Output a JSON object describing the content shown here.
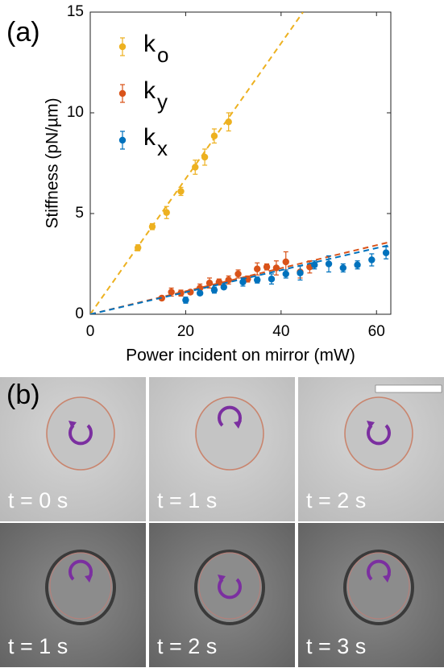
{
  "chart_data": {
    "type": "scatter",
    "xlabel": "Power incident on mirror (mW)",
    "ylabel": "Stiffness (pN/µm)",
    "xlim": [
      0,
      63
    ],
    "ylim": [
      0,
      15
    ],
    "xticks": [
      0,
      20,
      40,
      60
    ],
    "yticks": [
      0,
      5,
      10,
      15
    ],
    "legend": "upper left",
    "series": [
      {
        "name": "k",
        "subscript": "o",
        "color": "#EDB120",
        "x": [
          10,
          13,
          16,
          19,
          22,
          24,
          26,
          29
        ],
        "values": [
          3.3,
          4.35,
          5.05,
          6.1,
          7.3,
          7.8,
          8.85,
          9.55
        ],
        "errors": [
          0.15,
          0.15,
          0.3,
          0.2,
          0.35,
          0.4,
          0.35,
          0.45
        ],
        "fit": {
          "x": [
            0,
            44.6
          ],
          "y": [
            0,
            15
          ]
        }
      },
      {
        "name": "k",
        "subscript": "y",
        "color": "#D95319",
        "x": [
          15,
          17,
          19,
          21,
          23,
          25,
          27,
          29,
          31,
          33,
          35,
          37,
          39,
          41,
          44,
          46
        ],
        "values": [
          0.8,
          1.1,
          1.05,
          1.1,
          1.3,
          1.55,
          1.6,
          1.7,
          2.0,
          1.75,
          2.25,
          2.35,
          2.3,
          2.6,
          2.1,
          2.35
        ],
        "errors": [
          0.1,
          0.2,
          0.15,
          0.1,
          0.2,
          0.25,
          0.15,
          0.2,
          0.2,
          0.15,
          0.3,
          0.15,
          0.35,
          0.5,
          0.3,
          0.3
        ],
        "fit": {
          "x": [
            0,
            63
          ],
          "y": [
            0,
            3.6
          ]
        }
      },
      {
        "name": "k",
        "subscript": "x",
        "color": "#0072BD",
        "x": [
          20,
          23,
          26,
          28,
          32,
          35,
          38,
          41,
          44,
          47,
          50,
          53,
          56,
          59,
          62
        ],
        "values": [
          0.7,
          1.05,
          1.2,
          1.35,
          1.6,
          1.7,
          1.75,
          2.0,
          2.05,
          2.45,
          2.5,
          2.3,
          2.45,
          2.7,
          3.05
        ],
        "errors": [
          0.15,
          0.1,
          0.15,
          0.1,
          0.2,
          0.15,
          0.25,
          0.2,
          0.35,
          0.2,
          0.4,
          0.2,
          0.2,
          0.3,
          0.3
        ],
        "fit": {
          "x": [
            0,
            63
          ],
          "y": [
            0,
            3.45
          ]
        }
      }
    ]
  },
  "panel_labels": [
    "(a)",
    "(b)"
  ],
  "images": [
    "t = 0 s",
    "t = 1 s",
    "t = 2 s",
    "t = 1 s",
    "t = 2 s",
    "t = 3 s"
  ]
}
